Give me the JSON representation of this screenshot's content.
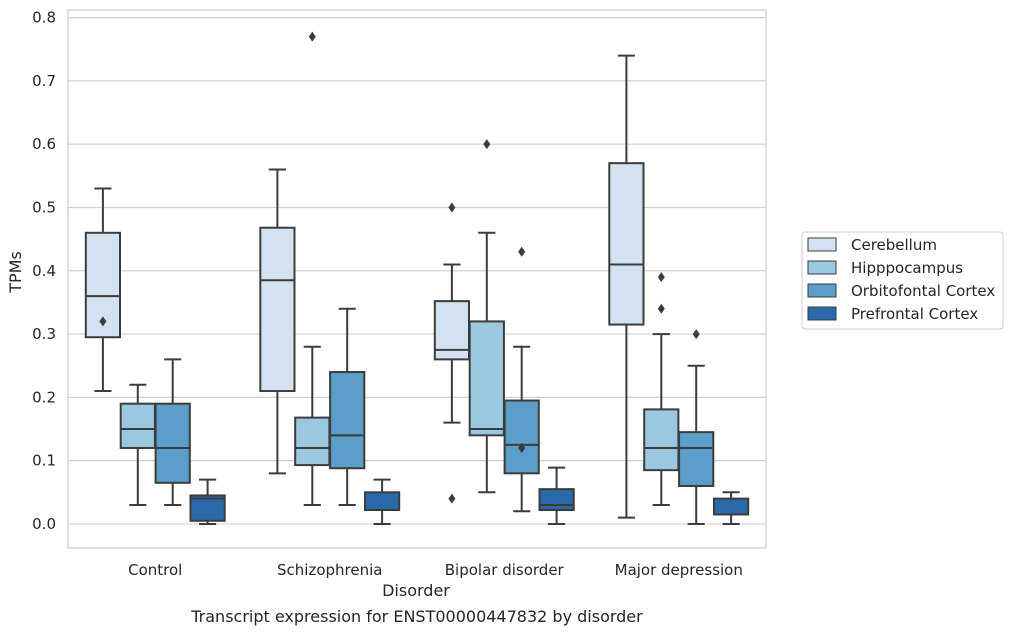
{
  "caption": "Transcript expression for ENST00000447832 by disorder",
  "chart_data": {
    "type": "box",
    "xlabel": "Disorder",
    "ylabel": "TPMs",
    "ylim": [
      -0.038,
      0.812
    ],
    "yticks": [
      "0.0",
      "0.1",
      "0.2",
      "0.3",
      "0.4",
      "0.5",
      "0.6",
      "0.7",
      "0.8"
    ],
    "ytick_values": [
      0,
      0.1,
      0.2,
      0.3,
      0.4,
      0.5,
      0.6,
      0.7,
      0.8
    ],
    "grid": "horizontal",
    "legend_position": "right",
    "categories": [
      "Control",
      "Schizophrenia",
      "Bipolar disorder",
      "Major depression"
    ],
    "series": [
      {
        "name": "Cerebellum",
        "color": "#d2e2f1",
        "boxes": [
          {
            "min": 0.21,
            "q1": 0.295,
            "median": 0.36,
            "q3": 0.46,
            "max": 0.53,
            "outliers": [
              0.32
            ]
          },
          {
            "min": 0.08,
            "q1": 0.21,
            "median": 0.385,
            "q3": 0.468,
            "max": 0.56,
            "outliers": []
          },
          {
            "min": 0.16,
            "q1": 0.26,
            "median": 0.275,
            "q3": 0.352,
            "max": 0.41,
            "outliers": [
              0.5,
              0.04
            ]
          },
          {
            "min": 0.01,
            "q1": 0.315,
            "median": 0.41,
            "q3": 0.57,
            "max": 0.74,
            "outliers": []
          }
        ]
      },
      {
        "name": "Hipppocampus",
        "color": "#9ac8e0",
        "boxes": [
          {
            "min": 0.03,
            "q1": 0.12,
            "median": 0.15,
            "q3": 0.19,
            "max": 0.22,
            "outliers": []
          },
          {
            "min": 0.03,
            "q1": 0.093,
            "median": 0.12,
            "q3": 0.168,
            "max": 0.28,
            "outliers": [
              0.77
            ]
          },
          {
            "min": 0.05,
            "q1": 0.14,
            "median": 0.15,
            "q3": 0.32,
            "max": 0.46,
            "outliers": [
              0.6
            ]
          },
          {
            "min": 0.03,
            "q1": 0.085,
            "median": 0.12,
            "q3": 0.181,
            "max": 0.3,
            "outliers": [
              0.39,
              0.34
            ]
          }
        ]
      },
      {
        "name": "Orbitofontal Cortex",
        "color": "#5a9ec9",
        "boxes": [
          {
            "min": 0.03,
            "q1": 0.065,
            "median": 0.12,
            "q3": 0.19,
            "max": 0.26,
            "outliers": []
          },
          {
            "min": 0.03,
            "q1": 0.088,
            "median": 0.14,
            "q3": 0.24,
            "max": 0.34,
            "outliers": []
          },
          {
            "min": 0.02,
            "q1": 0.08,
            "median": 0.125,
            "q3": 0.195,
            "max": 0.28,
            "outliers": [
              0.43,
              0.12
            ]
          },
          {
            "min": 0.0,
            "q1": 0.06,
            "median": 0.12,
            "q3": 0.145,
            "max": 0.25,
            "outliers": [
              0.3
            ]
          }
        ]
      },
      {
        "name": "Prefrontal Cortex",
        "color": "#2a6aa8",
        "boxes": [
          {
            "min": 0.0,
            "q1": 0.005,
            "median": 0.04,
            "q3": 0.045,
            "max": 0.07,
            "outliers": []
          },
          {
            "min": 0.0,
            "q1": 0.022,
            "median": 0.022,
            "q3": 0.05,
            "max": 0.07,
            "outliers": []
          },
          {
            "min": 0.0,
            "q1": 0.022,
            "median": 0.03,
            "q3": 0.055,
            "max": 0.089,
            "outliers": []
          },
          {
            "min": 0.0,
            "q1": 0.015,
            "median": 0.015,
            "q3": 0.04,
            "max": 0.05,
            "outliers": []
          }
        ]
      }
    ]
  }
}
